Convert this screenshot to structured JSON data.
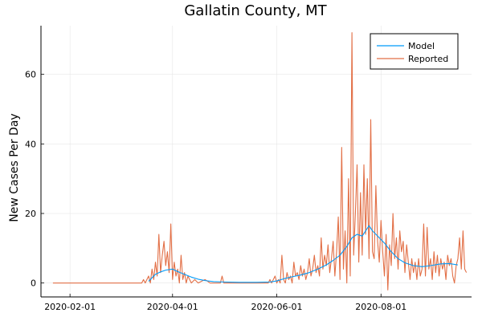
{
  "chart_data": {
    "type": "line",
    "title": "Gallatin County, MT",
    "xlabel": "",
    "ylabel": "New Cases Per Day",
    "grid": true,
    "legend_position": "top-right",
    "xlim": [
      "2020-01-15",
      "2020-09-23"
    ],
    "ylim": [
      -4,
      74
    ],
    "x_tick_labels": [
      "2020-02-01",
      "2020-04-01",
      "2020-06-01",
      "2020-08-01"
    ],
    "y_tick_labels": [
      "0",
      "20",
      "40",
      "60"
    ],
    "y_tick_values": [
      0,
      20,
      40,
      60
    ],
    "series": [
      {
        "name": "Model",
        "color": "#009AF9",
        "points": [
          [
            "2020-03-18",
            0.5
          ],
          [
            "2020-03-20",
            1.5
          ],
          [
            "2020-03-22",
            2.5
          ],
          [
            "2020-03-25",
            3.2
          ],
          [
            "2020-03-28",
            3.7
          ],
          [
            "2020-04-01",
            4.0
          ],
          [
            "2020-04-04",
            3.3
          ],
          [
            "2020-04-08",
            2.5
          ],
          [
            "2020-04-12",
            1.7
          ],
          [
            "2020-04-16",
            1.1
          ],
          [
            "2020-04-20",
            0.7
          ],
          [
            "2020-04-25",
            0.4
          ],
          [
            "2020-05-01",
            0.3
          ],
          [
            "2020-05-10",
            0.2
          ],
          [
            "2020-05-20",
            0.2
          ],
          [
            "2020-05-28",
            0.3
          ],
          [
            "2020-06-01",
            0.6
          ],
          [
            "2020-06-05",
            1.2
          ],
          [
            "2020-06-10",
            1.8
          ],
          [
            "2020-06-15",
            2.3
          ],
          [
            "2020-06-20",
            3.0
          ],
          [
            "2020-06-25",
            4.0
          ],
          [
            "2020-06-30",
            5.2
          ],
          [
            "2020-07-04",
            6.5
          ],
          [
            "2020-07-08",
            8.0
          ],
          [
            "2020-07-12",
            10.5
          ],
          [
            "2020-07-15",
            13.0
          ],
          [
            "2020-07-18",
            14.0
          ],
          [
            "2020-07-21",
            13.5
          ],
          [
            "2020-07-23",
            15.0
          ],
          [
            "2020-07-25",
            16.5
          ],
          [
            "2020-07-27",
            15.0
          ],
          [
            "2020-07-30",
            13.5
          ],
          [
            "2020-08-03",
            11.5
          ],
          [
            "2020-08-07",
            9.0
          ],
          [
            "2020-08-11",
            7.0
          ],
          [
            "2020-08-15",
            5.8
          ],
          [
            "2020-08-20",
            5.0
          ],
          [
            "2020-08-25",
            4.7
          ],
          [
            "2020-08-30",
            5.0
          ],
          [
            "2020-09-05",
            5.5
          ],
          [
            "2020-09-10",
            5.6
          ],
          [
            "2020-09-15",
            5.2
          ]
        ]
      },
      {
        "name": "Reported",
        "color": "#E26F46",
        "points": [
          [
            "2020-01-22",
            0
          ],
          [
            "2020-03-10",
            0
          ],
          [
            "2020-03-14",
            0
          ],
          [
            "2020-03-15",
            1
          ],
          [
            "2020-03-16",
            0
          ],
          [
            "2020-03-18",
            2
          ],
          [
            "2020-03-19",
            0
          ],
          [
            "2020-03-20",
            4
          ],
          [
            "2020-03-21",
            1
          ],
          [
            "2020-03-22",
            6
          ],
          [
            "2020-03-23",
            2
          ],
          [
            "2020-03-24",
            14
          ],
          [
            "2020-03-25",
            3
          ],
          [
            "2020-03-26",
            8
          ],
          [
            "2020-03-27",
            12
          ],
          [
            "2020-03-28",
            5
          ],
          [
            "2020-03-29",
            9
          ],
          [
            "2020-03-30",
            3
          ],
          [
            "2020-03-31",
            17
          ],
          [
            "2020-04-01",
            1
          ],
          [
            "2020-04-02",
            6
          ],
          [
            "2020-04-03",
            2
          ],
          [
            "2020-04-04",
            4
          ],
          [
            "2020-04-05",
            0
          ],
          [
            "2020-04-06",
            8
          ],
          [
            "2020-04-07",
            1
          ],
          [
            "2020-04-08",
            3
          ],
          [
            "2020-04-09",
            0
          ],
          [
            "2020-04-10",
            2
          ],
          [
            "2020-04-12",
            0
          ],
          [
            "2020-04-14",
            1
          ],
          [
            "2020-04-16",
            0
          ],
          [
            "2020-04-20",
            1
          ],
          [
            "2020-04-23",
            0
          ],
          [
            "2020-04-29",
            0
          ],
          [
            "2020-04-30",
            2
          ],
          [
            "2020-05-01",
            0
          ],
          [
            "2020-05-20",
            0
          ],
          [
            "2020-05-27",
            0
          ],
          [
            "2020-05-28",
            1
          ],
          [
            "2020-05-29",
            0
          ],
          [
            "2020-05-31",
            2
          ],
          [
            "2020-06-01",
            0
          ],
          [
            "2020-06-02",
            1
          ],
          [
            "2020-06-03",
            0
          ],
          [
            "2020-06-04",
            8
          ],
          [
            "2020-06-05",
            1
          ],
          [
            "2020-06-06",
            0
          ],
          [
            "2020-06-07",
            3
          ],
          [
            "2020-06-08",
            1
          ],
          [
            "2020-06-09",
            2
          ],
          [
            "2020-06-10",
            0
          ],
          [
            "2020-06-11",
            6
          ],
          [
            "2020-06-12",
            2
          ],
          [
            "2020-06-13",
            3
          ],
          [
            "2020-06-14",
            1
          ],
          [
            "2020-06-15",
            5
          ],
          [
            "2020-06-16",
            2
          ],
          [
            "2020-06-17",
            4
          ],
          [
            "2020-06-18",
            1
          ],
          [
            "2020-06-19",
            3
          ],
          [
            "2020-06-20",
            7
          ],
          [
            "2020-06-21",
            2
          ],
          [
            "2020-06-22",
            4
          ],
          [
            "2020-06-23",
            8
          ],
          [
            "2020-06-24",
            3
          ],
          [
            "2020-06-25",
            5
          ],
          [
            "2020-06-26",
            2
          ],
          [
            "2020-06-27",
            13
          ],
          [
            "2020-06-28",
            4
          ],
          [
            "2020-06-29",
            8
          ],
          [
            "2020-06-30",
            5
          ],
          [
            "2020-07-01",
            11
          ],
          [
            "2020-07-02",
            3
          ],
          [
            "2020-07-03",
            7
          ],
          [
            "2020-07-04",
            12
          ],
          [
            "2020-07-05",
            2
          ],
          [
            "2020-07-06",
            9
          ],
          [
            "2020-07-07",
            19
          ],
          [
            "2020-07-08",
            1
          ],
          [
            "2020-07-09",
            39
          ],
          [
            "2020-07-10",
            4
          ],
          [
            "2020-07-11",
            15
          ],
          [
            "2020-07-12",
            0
          ],
          [
            "2020-07-13",
            30
          ],
          [
            "2020-07-14",
            2
          ],
          [
            "2020-07-15",
            72
          ],
          [
            "2020-07-16",
            8
          ],
          [
            "2020-07-17",
            20
          ],
          [
            "2020-07-18",
            34
          ],
          [
            "2020-07-19",
            6
          ],
          [
            "2020-07-20",
            26
          ],
          [
            "2020-07-21",
            8
          ],
          [
            "2020-07-22",
            34
          ],
          [
            "2020-07-23",
            14
          ],
          [
            "2020-07-24",
            30
          ],
          [
            "2020-07-25",
            7
          ],
          [
            "2020-07-26",
            47
          ],
          [
            "2020-07-27",
            9
          ],
          [
            "2020-07-28",
            7
          ],
          [
            "2020-07-29",
            28
          ],
          [
            "2020-07-30",
            12
          ],
          [
            "2020-07-31",
            6
          ],
          [
            "2020-08-01",
            18
          ],
          [
            "2020-08-02",
            9
          ],
          [
            "2020-08-03",
            2
          ],
          [
            "2020-08-04",
            14
          ],
          [
            "2020-08-05",
            -2
          ],
          [
            "2020-08-06",
            11
          ],
          [
            "2020-08-07",
            5
          ],
          [
            "2020-08-08",
            20
          ],
          [
            "2020-08-09",
            7
          ],
          [
            "2020-08-10",
            13
          ],
          [
            "2020-08-11",
            4
          ],
          [
            "2020-08-12",
            15
          ],
          [
            "2020-08-13",
            9
          ],
          [
            "2020-08-14",
            12
          ],
          [
            "2020-08-15",
            3
          ],
          [
            "2020-08-16",
            11
          ],
          [
            "2020-08-17",
            6
          ],
          [
            "2020-08-18",
            1
          ],
          [
            "2020-08-19",
            7
          ],
          [
            "2020-08-20",
            3
          ],
          [
            "2020-08-21",
            6
          ],
          [
            "2020-08-22",
            1
          ],
          [
            "2020-08-23",
            7
          ],
          [
            "2020-08-24",
            2
          ],
          [
            "2020-08-25",
            4
          ],
          [
            "2020-08-26",
            17
          ],
          [
            "2020-08-27",
            2
          ],
          [
            "2020-08-28",
            16
          ],
          [
            "2020-08-29",
            4
          ],
          [
            "2020-08-30",
            7
          ],
          [
            "2020-08-31",
            1
          ],
          [
            "2020-09-01",
            9
          ],
          [
            "2020-09-02",
            3
          ],
          [
            "2020-09-03",
            8
          ],
          [
            "2020-09-04",
            2
          ],
          [
            "2020-09-05",
            7
          ],
          [
            "2020-09-06",
            4
          ],
          [
            "2020-09-07",
            6
          ],
          [
            "2020-09-08",
            1
          ],
          [
            "2020-09-09",
            8
          ],
          [
            "2020-09-10",
            5
          ],
          [
            "2020-09-11",
            7
          ],
          [
            "2020-09-12",
            2
          ],
          [
            "2020-09-13",
            0
          ],
          [
            "2020-09-14",
            5
          ],
          [
            "2020-09-15",
            7
          ],
          [
            "2020-09-16",
            13
          ],
          [
            "2020-09-17",
            4
          ],
          [
            "2020-09-18",
            15
          ],
          [
            "2020-09-19",
            4
          ],
          [
            "2020-09-20",
            3
          ]
        ]
      }
    ]
  }
}
